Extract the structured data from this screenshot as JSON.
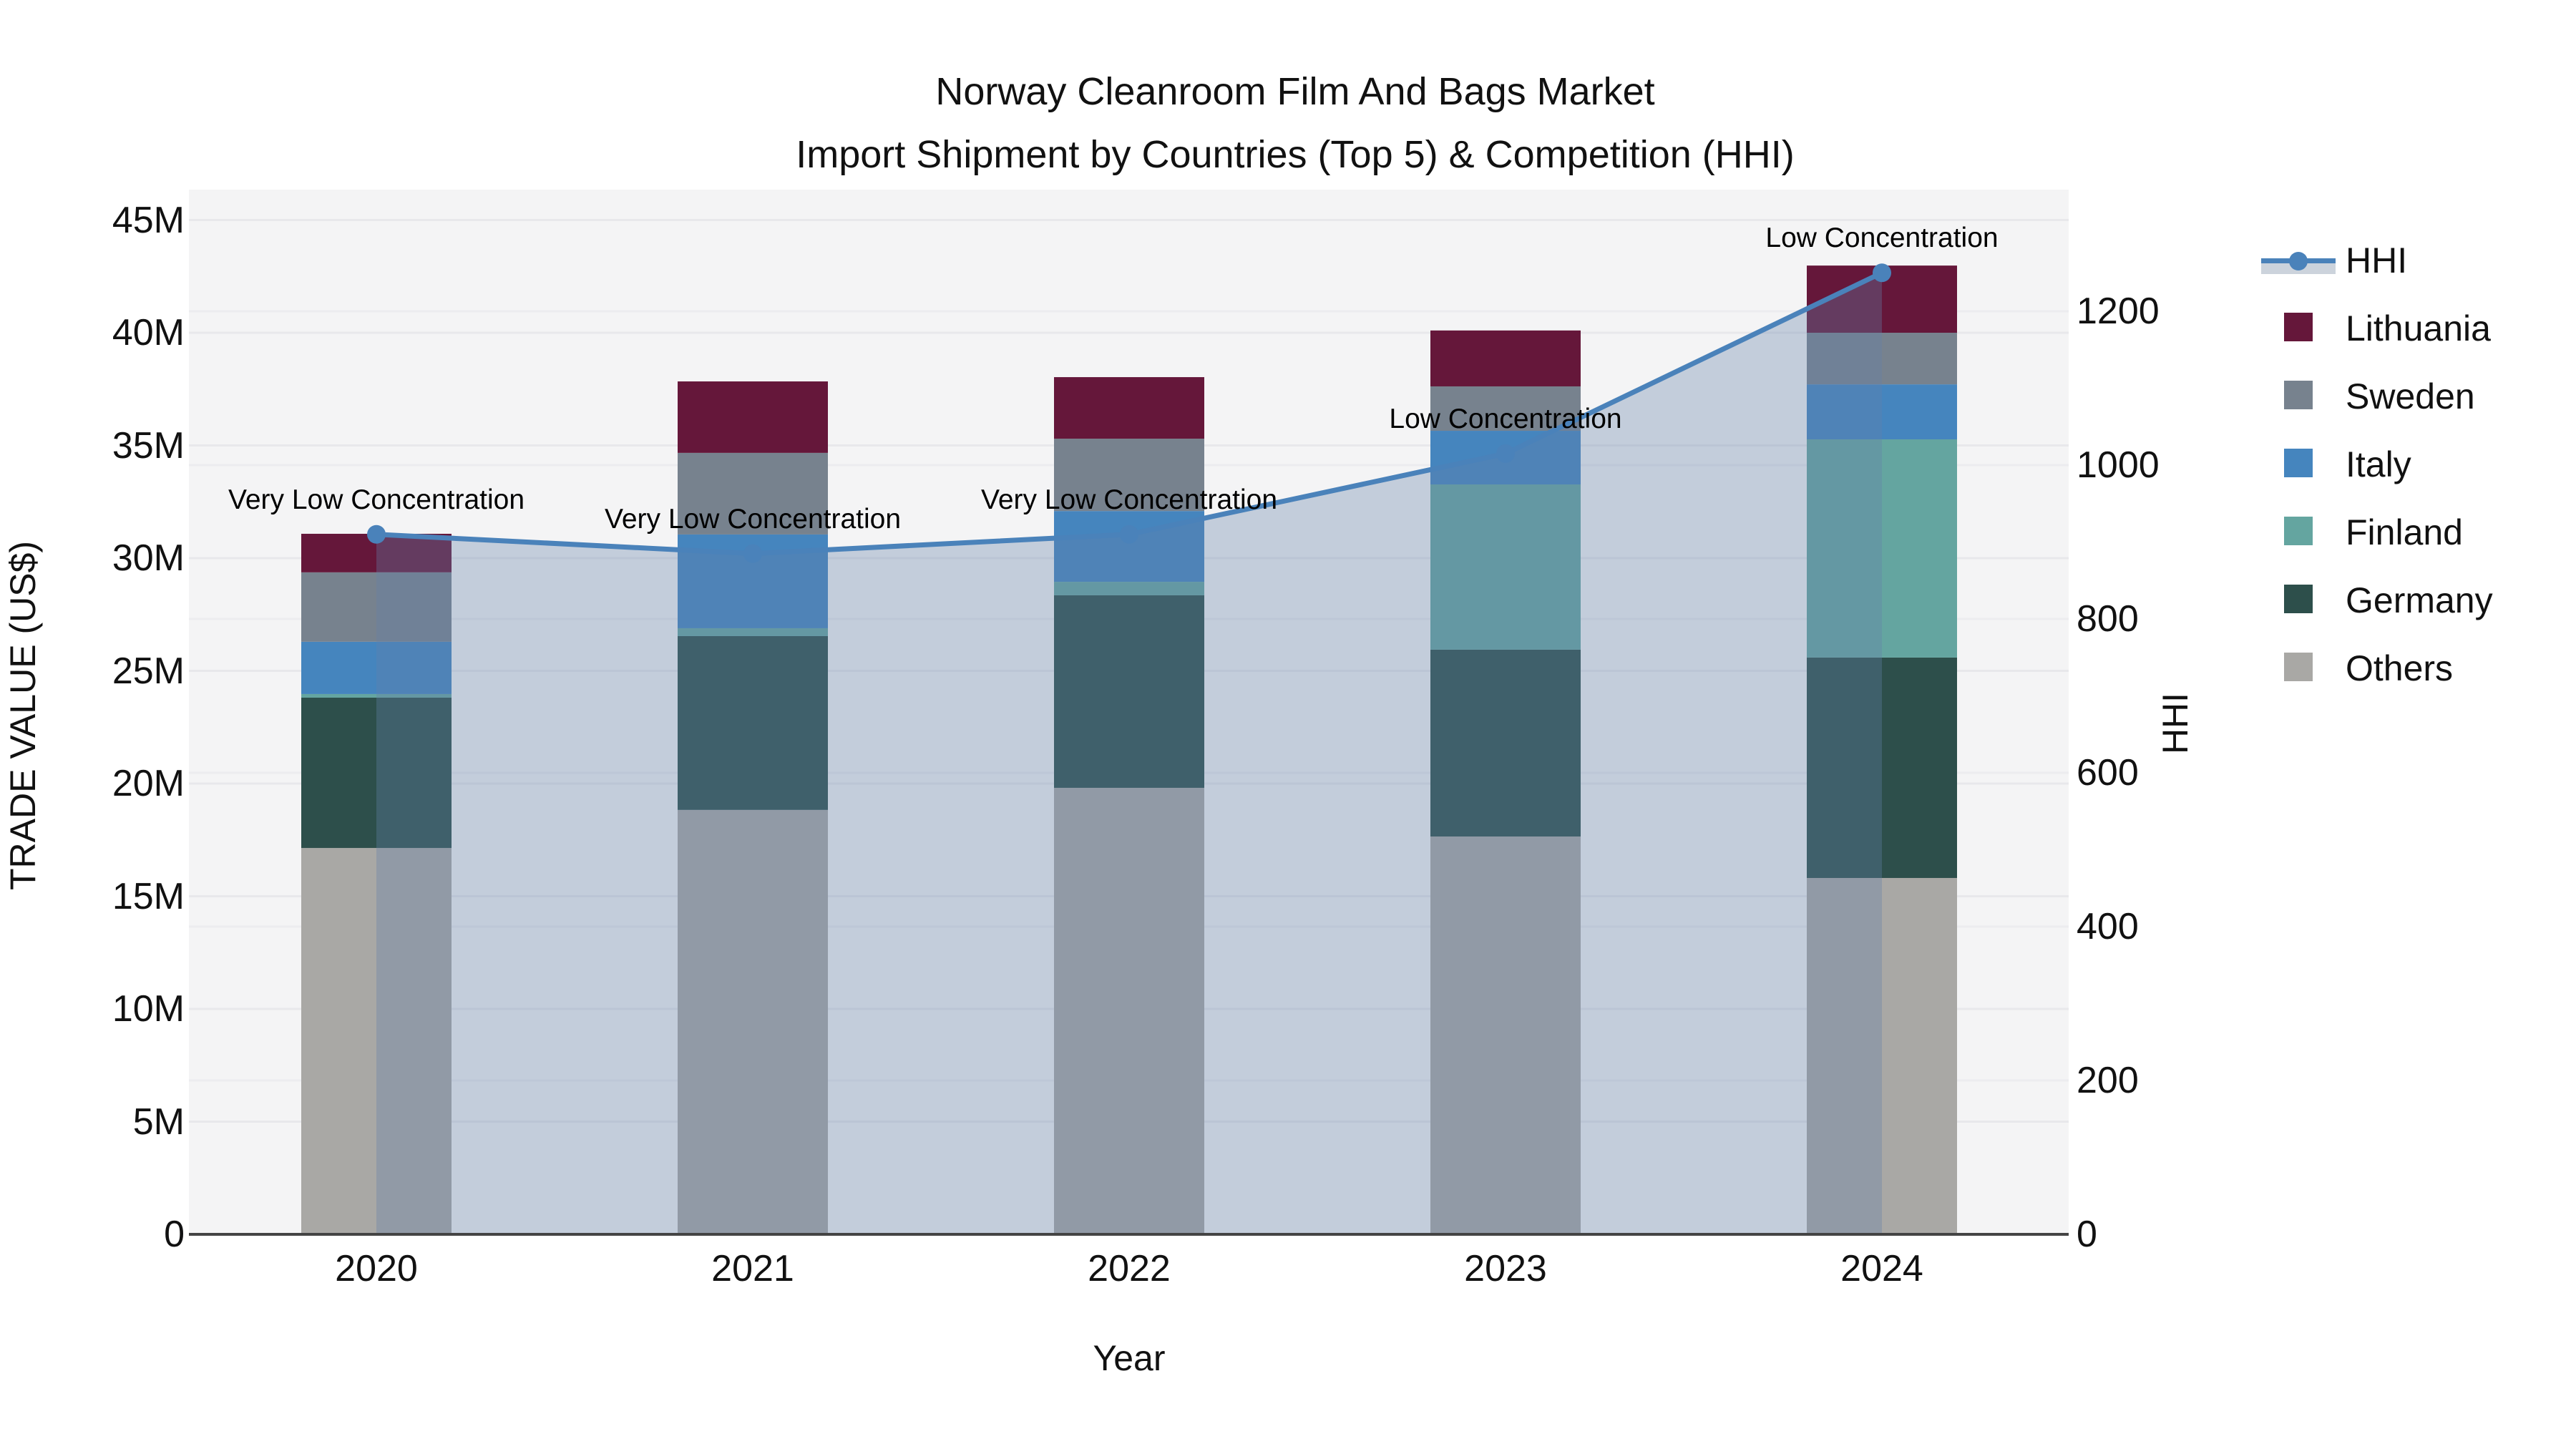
{
  "title": {
    "line1": "Norway Cleanroom Film And Bags Market",
    "line2": "Import Shipment by Countries (Top 5) & Competition (HHI)"
  },
  "left_axis": {
    "title": "TRADE VALUE (US$)",
    "ticks": [
      "0",
      "5M",
      "10M",
      "15M",
      "20M",
      "25M",
      "30M",
      "35M",
      "40M",
      "45M"
    ],
    "tick_values": [
      0,
      5,
      10,
      15,
      20,
      25,
      30,
      35,
      40,
      45
    ]
  },
  "right_axis": {
    "title": "HHI",
    "ticks": [
      "0",
      "200",
      "400",
      "600",
      "800",
      "1000",
      "1200"
    ],
    "tick_values": [
      0,
      200,
      400,
      600,
      800,
      1000,
      1200
    ]
  },
  "x_axis": {
    "title": "Year",
    "categories": [
      "2020",
      "2021",
      "2022",
      "2023",
      "2024"
    ]
  },
  "legend": {
    "items": [
      {
        "label": "HHI",
        "type": "line",
        "color": "#4a82ba"
      },
      {
        "label": "Lithuania",
        "type": "swatch",
        "color": "#65173a"
      },
      {
        "label": "Sweden",
        "type": "swatch",
        "color": "#77828e"
      },
      {
        "label": "Italy",
        "type": "swatch",
        "color": "#4585be"
      },
      {
        "label": "Finland",
        "type": "swatch",
        "color": "#64a5a0"
      },
      {
        "label": "Germany",
        "type": "swatch",
        "color": "#2d4f4b"
      },
      {
        "label": "Others",
        "type": "swatch",
        "color": "#a9a8a5"
      }
    ]
  },
  "annotations": [
    {
      "year": "2020",
      "text": "Very Low Concentration"
    },
    {
      "year": "2021",
      "text": "Very Low Concentration"
    },
    {
      "year": "2022",
      "text": "Very Low Concentration"
    },
    {
      "year": "2023",
      "text": "Low Concentration"
    },
    {
      "year": "2024",
      "text": "Low Concentration"
    }
  ],
  "chart_data": {
    "type": "bar+line",
    "title": "Norway Cleanroom Film And Bags Market — Import Shipment by Countries (Top 5) & Competition (HHI)",
    "categories": [
      "2020",
      "2021",
      "2022",
      "2023",
      "2024"
    ],
    "stacked_bar_units": "US$ millions",
    "series_bottom_to_top": [
      {
        "name": "Others",
        "color": "#a9a8a5",
        "values": [
          17.14,
          18.83,
          19.81,
          17.65,
          15.81
        ]
      },
      {
        "name": "Germany",
        "color": "#2d4f4b",
        "values": [
          6.67,
          7.71,
          8.54,
          8.29,
          9.78
        ]
      },
      {
        "name": "Finland",
        "color": "#64a5a0",
        "values": [
          0.16,
          0.35,
          0.6,
          7.33,
          9.68
        ]
      },
      {
        "name": "Italy",
        "color": "#4585be",
        "values": [
          2.32,
          4.16,
          3.14,
          2.38,
          2.44
        ]
      },
      {
        "name": "Sweden",
        "color": "#77828e",
        "values": [
          3.08,
          3.62,
          3.21,
          1.97,
          2.29
        ]
      },
      {
        "name": "Lithuania",
        "color": "#65173a",
        "values": [
          1.71,
          3.17,
          2.73,
          2.48,
          2.98
        ]
      }
    ],
    "bar_totals": [
      31.08,
      37.84,
      38.03,
      40.1,
      42.98
    ],
    "line": {
      "name": "HHI",
      "color": "#4a82ba",
      "values": [
        910,
        885,
        910,
        1015,
        1250
      ],
      "area_fill": "rgba(100,130,170,0.34)"
    },
    "xlabel": "Year",
    "ylabel": "TRADE VALUE (US$)",
    "y2label": "HHI",
    "ylim": [
      0,
      45
    ],
    "y2lim": [
      0,
      1358
    ],
    "grid": true,
    "legend_position": "right"
  },
  "colors": {
    "plot_bg": "#f4f4f5",
    "grid_left": "#e8e8eb",
    "grid_right": "#ececef",
    "axis_line": "#444444",
    "hhi_line": "#4a82ba",
    "hhi_area": "rgba(100,130,170,0.34)"
  }
}
